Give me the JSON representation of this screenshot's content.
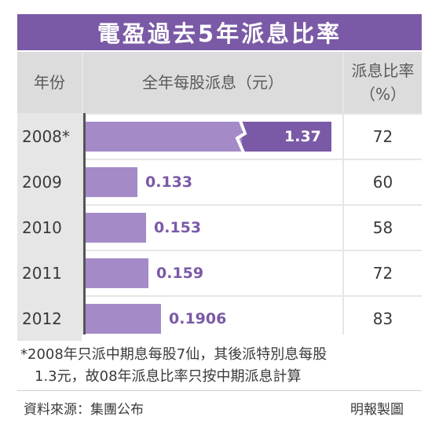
{
  "title": "電盈過去5年派息比率",
  "headers": {
    "year": "年份",
    "dividend": "全年每股派息（元）",
    "ratio_line1": "派息比率",
    "ratio_line2": "（%）"
  },
  "chart_data": {
    "type": "bar",
    "orientation": "horizontal",
    "categories": [
      "2008*",
      "2009",
      "2010",
      "2011",
      "2012"
    ],
    "values": [
      1.37,
      0.133,
      0.153,
      0.159,
      0.1906
    ],
    "value_labels": [
      "1.37",
      "0.133",
      "0.153",
      "0.159",
      "0.1906"
    ],
    "payout_ratio": [
      "72",
      "60",
      "58",
      "72",
      "83"
    ],
    "broken_axis_first_bar": true,
    "colors": {
      "bar": "#a48bc8",
      "bar_dark": "#7a5aa6",
      "label": "#7a5aa6"
    }
  },
  "footnote": {
    "line1": "*2008年只派中期息每股7仙，其後派特別息每股",
    "line2": "1.3元，故08年派息比率只按中期派息計算"
  },
  "source": "資料來源：集團公布",
  "credit": "明報製圖",
  "colors": {
    "title_bg": "#7a5aa6",
    "header_bg": "#dcdcdc"
  }
}
